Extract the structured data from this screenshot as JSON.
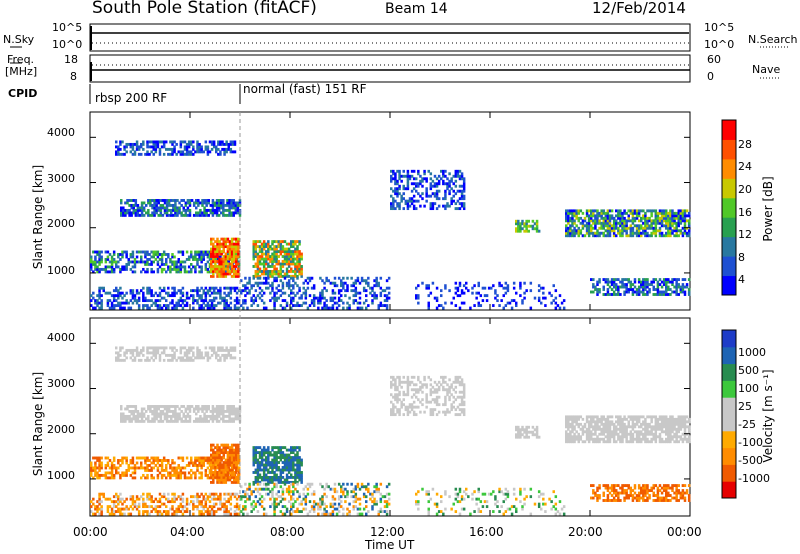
{
  "header": {
    "station": "South Pole Station (fitACF)",
    "beam": "Beam 14",
    "date": "12/Feb/2014"
  },
  "left_labels": {
    "nsky": "N.Sky",
    "freq": "Freq.",
    "mhz": "[MHz]",
    "cpid": "CPID"
  },
  "right_labels": {
    "nsearch": "N.Search",
    "nave": "Nave"
  },
  "noise_axis": {
    "left_top": "10^5",
    "left_bottom": "10^0",
    "right_top": "10^5",
    "right_bottom": "10^0"
  },
  "freq_axis": {
    "left_top": "18",
    "left_bottom": "8",
    "right_top": "60",
    "right_bottom": "0"
  },
  "cpid": {
    "segments": [
      {
        "start_hour": 0.0,
        "label": "rbsp 200 RF"
      },
      {
        "start_hour": 6.0,
        "label": "normal (fast) 151 RF"
      }
    ]
  },
  "colors": {
    "power": [
      "#0000ff",
      "#1e50d2",
      "#2878a0",
      "#28a050",
      "#50c828",
      "#c8c800",
      "#ff8c00",
      "#ff5000",
      "#ff0000"
    ],
    "velocity": [
      "#e60000",
      "#f05a00",
      "#ff8c00",
      "#ffaa00",
      "#c8c8c8",
      "#c8c8c8",
      "#3cc83c",
      "#288c50",
      "#1e64b4",
      "#1e3cc8"
    ]
  },
  "chart_data": [
    {
      "type": "heatmap",
      "name": "power",
      "ylabel": "Slant Range [km]",
      "yticks": [
        "1000",
        "2000",
        "3000",
        "4000"
      ],
      "colorbar_label": "Power [dB]",
      "colorbar_ticks": [
        "4",
        "8",
        "12",
        "16",
        "20",
        "24",
        "28"
      ],
      "xlim_hours": [
        0,
        24
      ],
      "ylim_km": [
        180,
        4560
      ],
      "colorbar_range": [
        0,
        30
      ]
    },
    {
      "type": "heatmap",
      "name": "velocity",
      "ylabel": "Slant Range [km]",
      "yticks": [
        "1000",
        "2000",
        "3000",
        "4000"
      ],
      "colorbar_label": "Velocity [m s⁻¹]",
      "colorbar_ticks": [
        "1000",
        "500",
        "100",
        "25",
        "-25",
        "-100",
        "-500",
        "-1000"
      ],
      "xlim_hours": [
        0,
        24
      ],
      "ylim_km": [
        180,
        4560
      ]
    }
  ],
  "xaxis": {
    "label": "Time UT",
    "ticks": [
      "00:00",
      "04:00",
      "08:00",
      "12:00",
      "16:00",
      "20:00",
      "00:00"
    ]
  }
}
